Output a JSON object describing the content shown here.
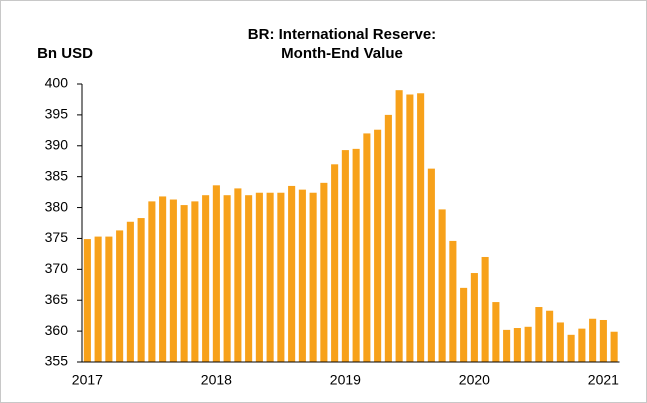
{
  "chart_data": {
    "type": "bar",
    "title": [
      "BR: International Reserve:",
      "Month-End Value"
    ],
    "y_label": "Bn USD",
    "categories": [
      "2017",
      null,
      null,
      null,
      null,
      null,
      null,
      null,
      null,
      null,
      null,
      null,
      "2018",
      null,
      null,
      null,
      null,
      null,
      null,
      null,
      null,
      null,
      null,
      null,
      "2019",
      null,
      null,
      null,
      null,
      null,
      null,
      null,
      null,
      null,
      null,
      null,
      "2020",
      null,
      null,
      null,
      null,
      null,
      null,
      null,
      null,
      null,
      null,
      null,
      "2021",
      null
    ],
    "values": [
      374.9,
      375.3,
      375.3,
      376.3,
      377.7,
      378.3,
      381.0,
      381.8,
      381.3,
      380.4,
      381.0,
      382.0,
      383.6,
      382.0,
      383.1,
      382.0,
      382.4,
      382.4,
      382.4,
      383.5,
      382.9,
      382.4,
      384.0,
      387.0,
      389.3,
      389.5,
      392.0,
      392.6,
      395.0,
      399.0,
      398.3,
      398.5,
      386.3,
      379.7,
      374.6,
      367.0,
      369.4,
      372.0,
      364.7,
      360.2,
      360.5,
      360.7,
      363.9,
      363.3,
      361.4,
      359.4,
      360.4,
      362.0,
      361.8,
      359.9
    ],
    "color": "#f7a11a",
    "ylim": [
      355,
      400
    ],
    "yticks": [
      355,
      360,
      365,
      370,
      375,
      380,
      385,
      390,
      395,
      400
    ],
    "grid": false
  }
}
